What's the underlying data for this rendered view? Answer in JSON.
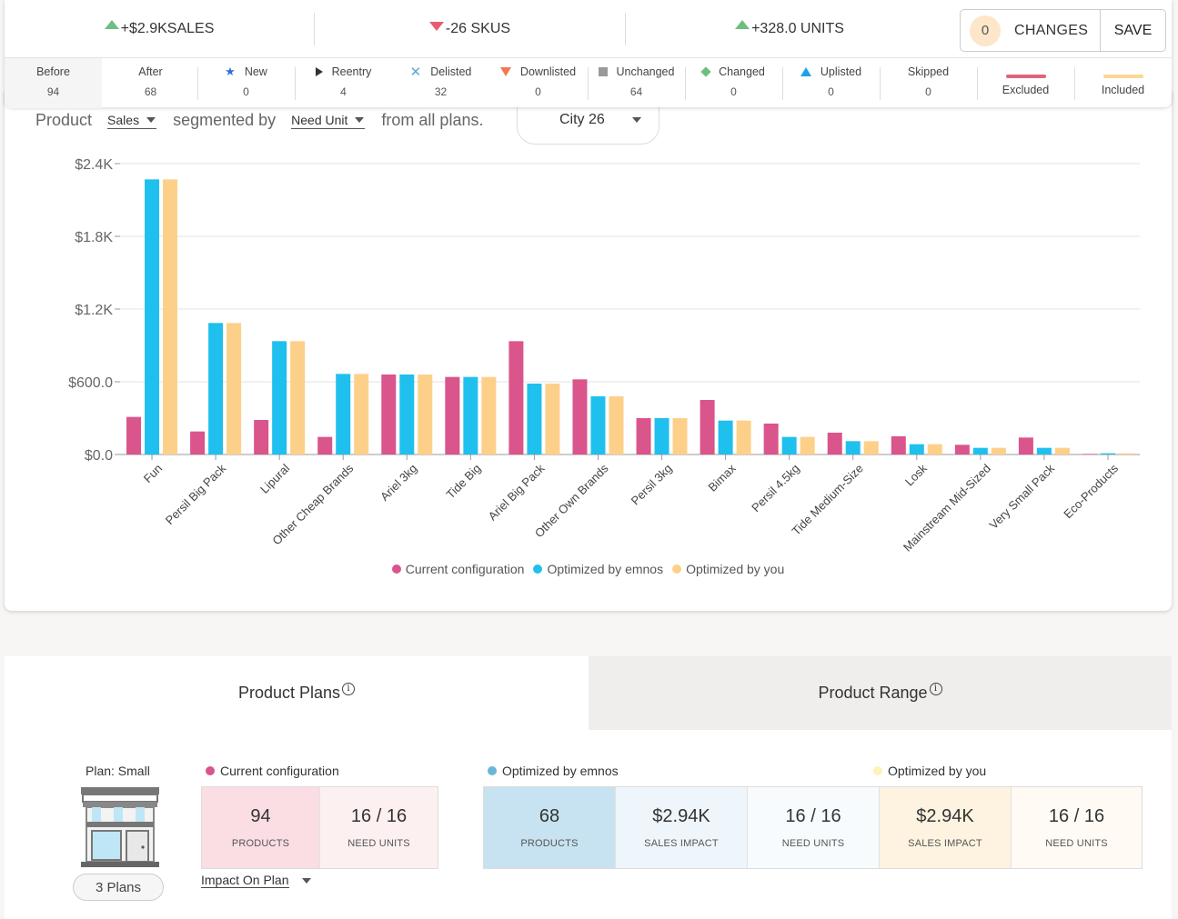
{
  "kpis": [
    {
      "direction": "up",
      "text": "+$2.9KSALES"
    },
    {
      "direction": "down",
      "text": "-26 SKUS"
    },
    {
      "direction": "up",
      "text": "+328.0 UNITS"
    }
  ],
  "changes": {
    "count": "0",
    "label": "CHANGES",
    "save_label": "SAVE"
  },
  "status_legend": [
    {
      "label": "Before",
      "value": "94",
      "icon": "none"
    },
    {
      "label": "After",
      "value": "68",
      "icon": "none"
    },
    {
      "label": "New",
      "value": "0",
      "icon": "star-icon",
      "color": "#2f6fd6"
    },
    {
      "label": "Reentry",
      "value": "4",
      "icon": "play-icon",
      "color": "#333333"
    },
    {
      "label": "Delisted",
      "value": "32",
      "icon": "x-icon",
      "color": "#5aa7d6"
    },
    {
      "label": "Downlisted",
      "value": "0",
      "icon": "down-triangle-icon",
      "color": "#f07a50"
    },
    {
      "label": "Unchanged",
      "value": "64",
      "icon": "square-icon",
      "color": "#999999"
    },
    {
      "label": "Changed",
      "value": "0",
      "icon": "diamond-icon",
      "color": "#6dbf7f"
    },
    {
      "label": "Uplisted",
      "value": "0",
      "icon": "up-triangle-icon",
      "color": "#1aa3e8"
    },
    {
      "label": "Skipped",
      "value": "0",
      "icon": "none"
    },
    {
      "label": "Excluded",
      "value": "",
      "icon": "line-icon",
      "color": "#e06377"
    },
    {
      "label": "Included",
      "value": "",
      "icon": "line-icon",
      "color": "#fcd692"
    }
  ],
  "controls": {
    "product_label": "Product",
    "metric": "Sales",
    "segmented_label": "segmented by",
    "segment": "Need Unit",
    "from_label": "from all plans.",
    "city": "City 26"
  },
  "colors": {
    "current": "#d9558b",
    "emnos": "#1fc0ee",
    "you": "#fdd08a"
  },
  "chart_data": {
    "type": "bar",
    "categories": [
      "Fun",
      "Persil Big Pack",
      "Lipural",
      "Other Cheap Brands",
      "Ariel 3kg",
      "Tide Big",
      "Ariel Big Pack",
      "Other Own Brands",
      "Persil 3kg",
      "Bimax",
      "Persil 4.5kg",
      "Tide Medium-Size",
      "Losk",
      "Mainstream Mid-Sized",
      "Very Small Pack",
      "Eco-Products"
    ],
    "series": [
      {
        "name": "Current configuration",
        "values": [
          310,
          190,
          285,
          145,
          660,
          640,
          935,
          620,
          300,
          450,
          255,
          180,
          150,
          80,
          140,
          5
        ]
      },
      {
        "name": "Optimized by emnos",
        "values": [
          2270,
          1085,
          935,
          665,
          660,
          640,
          585,
          480,
          300,
          280,
          145,
          110,
          85,
          55,
          55,
          10
        ]
      },
      {
        "name": "Optimized by you",
        "values": [
          2270,
          1085,
          935,
          665,
          660,
          640,
          585,
          480,
          300,
          280,
          145,
          110,
          85,
          55,
          55,
          10
        ]
      }
    ],
    "yticks": [
      "$0.0",
      "$600.0",
      "$1.2K",
      "$1.8K",
      "$2.4K"
    ],
    "ylim": [
      0,
      2400
    ],
    "grid": true,
    "legend_position": "bottom-center"
  },
  "tabs": [
    {
      "label": "Product Plans",
      "active": true
    },
    {
      "label": "Product Range",
      "active": false
    }
  ],
  "plan": {
    "label": "Plan: Small",
    "plans_button": "3 Plans"
  },
  "current_group": {
    "label": "Current configuration",
    "stats": [
      {
        "value": "94",
        "caption": "PRODUCTS"
      },
      {
        "value": "16 / 16",
        "caption": "NEED UNITS"
      }
    ]
  },
  "emnos_group": {
    "label": "Optimized by emnos",
    "stats": [
      {
        "value": "68",
        "caption": "PRODUCTS"
      },
      {
        "value": "$2.94K",
        "caption": "SALES IMPACT"
      },
      {
        "value": "16 / 16",
        "caption": "NEED UNITS"
      }
    ]
  },
  "you_group": {
    "label": "Optimized by you",
    "stats": [
      {
        "value": "$2.94K",
        "caption": "SALES IMPACT"
      },
      {
        "value": "16 / 16",
        "caption": "NEED UNITS"
      }
    ]
  },
  "impact_label": "Impact On Plan"
}
